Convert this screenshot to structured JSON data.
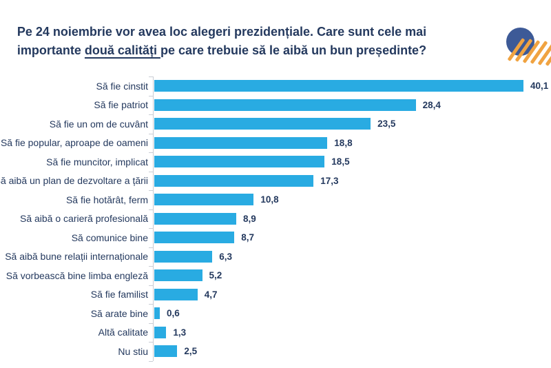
{
  "title": {
    "line1": "Pe 24 noiembrie vor avea loc alegeri prezidențiale. Care sunt cele mai",
    "line2_pre": "importante ",
    "line2_underline": "două calități ",
    "line2_post": "pe care trebuie să le aibă un bun președinte?"
  },
  "logo": {
    "description": "dark-blue-circle-with-orange-diagonal-stripes"
  },
  "colors": {
    "bar": "#29ABE2",
    "text": "#24395E",
    "axis": "#C9CDD4",
    "logo_circle": "#3D5A97",
    "logo_stripe": "#F0A341",
    "background": "#FFFFFF"
  },
  "chart_data": {
    "type": "bar",
    "orientation": "horizontal",
    "title": "",
    "xlabel": "",
    "ylabel": "",
    "grid": false,
    "legend": null,
    "value_labels_position": "end-of-bar",
    "xlim": [
      0,
      42
    ],
    "categories": [
      "Să fie cinstit",
      "Să fie patriot",
      "Să fie un om de cuvânt",
      "Să fie popular, aproape de oameni",
      "Să fie muncitor, implicat",
      "Să aibă un plan de dezvoltare a țării",
      "Să fie hotărât, ferm",
      "Să aibă o carieră profesională",
      "Să comunice bine",
      "Să aibă bune relații internaționale",
      "Să vorbească bine limba engleză",
      "Să fie familist",
      "Să arate bine",
      "Altă calitate",
      "Nu stiu"
    ],
    "values": [
      40.1,
      28.4,
      23.5,
      18.8,
      18.5,
      17.3,
      10.8,
      8.9,
      8.7,
      6.3,
      5.2,
      4.7,
      0.6,
      1.3,
      2.5
    ],
    "value_labels": [
      "40,1",
      "28,4",
      "23,5",
      "18,8",
      "18,5",
      "17,3",
      "10,8",
      "8,9",
      "8,7",
      "6,3",
      "5,2",
      "4,7",
      "0,6",
      "1,3",
      "2,5"
    ]
  }
}
